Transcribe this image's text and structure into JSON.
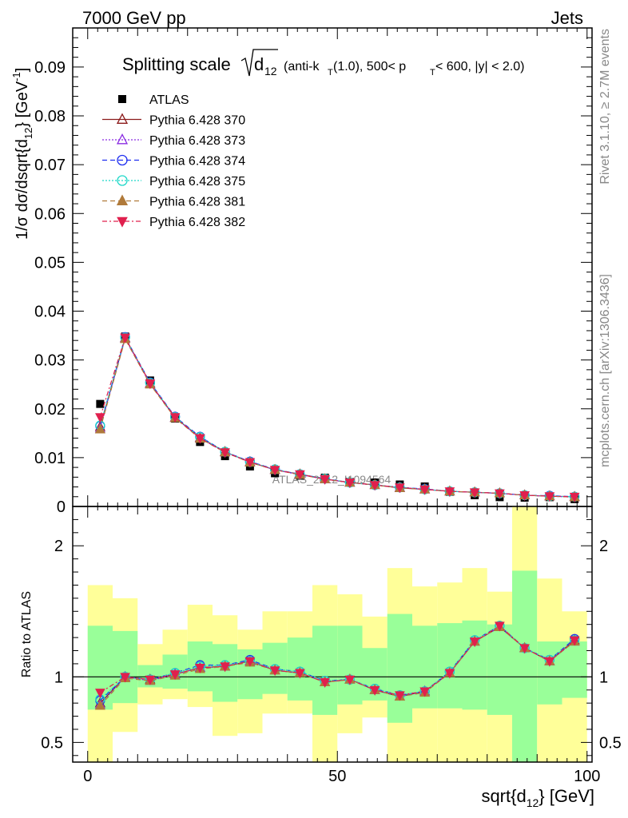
{
  "header": {
    "left": "7000 GeV pp",
    "right": "Jets"
  },
  "side_labels": {
    "rivet": "Rivet 3.1.10, ≥ 2.7M events",
    "mcplots": "mcplots.cern.ch [arXiv:1306.3436]"
  },
  "watermark": "ATLAS_2012_I1094564",
  "chart_data": [
    {
      "type": "scatter",
      "panel": "main",
      "title_main": "Splitting scale",
      "title_sub": "(anti-k",
      "title_tail": "(1.0), 500< p",
      "title_tail2": " < 600, |y| < 2.0)",
      "sqrt_sym": "d",
      "sqrt_sub": "12",
      "ylabel": "1/σ dσ/dsqrt{d",
      "ylabel_sub": "12",
      "ylabel_tail": "} [GeV",
      "ylabel_sup": "-1",
      "ylabel_end": "]",
      "ylim": [
        0,
        0.098
      ],
      "xlim": [
        -3,
        101
      ],
      "yticks": [
        "0",
        "0.01",
        "0.02",
        "0.03",
        "0.04",
        "0.05",
        "0.06",
        "0.07",
        "0.08",
        "0.09"
      ],
      "x": [
        2.5,
        7.5,
        12.5,
        17.5,
        22.5,
        27.5,
        32.5,
        37.5,
        42.5,
        47.5,
        52.5,
        57.5,
        62.5,
        67.5,
        72.5,
        77.5,
        82.5,
        87.5,
        92.5,
        97.5
      ],
      "series": [
        {
          "name": "ATLAS",
          "color": "#000000",
          "marker": "square",
          "line": "none",
          "values": [
            0.021,
            0.0348,
            0.0258,
            0.018,
            0.0132,
            0.0103,
            0.0082,
            0.0068,
            0.0063,
            0.0059,
            0.005,
            0.0049,
            0.0045,
            0.0041,
            0.003,
            0.0023,
            0.0019,
            0.0018,
            0.0019,
            0.0015
          ]
        },
        {
          "name": "Pythia 6.428 370",
          "color": "#8b1a1a",
          "marker": "triangle-open",
          "line": "solid",
          "values": [
            0.0163,
            0.0345,
            0.0252,
            0.0182,
            0.0141,
            0.0112,
            0.0091,
            0.0075,
            0.0066,
            0.0056,
            0.0049,
            0.0044,
            0.0038,
            0.0035,
            0.0031,
            0.0029,
            0.0027,
            0.0023,
            0.0021,
            0.002
          ]
        },
        {
          "name": "Pythia 6.428 373",
          "color": "#8a2be2",
          "marker": "triangle-open",
          "line": "dotted",
          "values": [
            0.016,
            0.0344,
            0.0251,
            0.0182,
            0.014,
            0.0111,
            0.0091,
            0.0075,
            0.0065,
            0.0056,
            0.0049,
            0.0044,
            0.0039,
            0.0035,
            0.0031,
            0.0029,
            0.0027,
            0.0023,
            0.0021,
            0.0019
          ]
        },
        {
          "name": "Pythia 6.428 374",
          "color": "#1f2ff0",
          "marker": "circle-open",
          "line": "dashed",
          "values": [
            0.0165,
            0.0347,
            0.0254,
            0.0184,
            0.0143,
            0.0112,
            0.0092,
            0.0076,
            0.0066,
            0.0057,
            0.0049,
            0.0044,
            0.0039,
            0.0036,
            0.0031,
            0.0029,
            0.0027,
            0.0023,
            0.0022,
            0.002
          ]
        },
        {
          "name": "Pythia 6.428 375",
          "color": "#1ed8c8",
          "marker": "circle-open",
          "line": "dotted",
          "values": [
            0.0166,
            0.0346,
            0.0253,
            0.0183,
            0.0142,
            0.0112,
            0.0091,
            0.0076,
            0.0066,
            0.0057,
            0.0049,
            0.0044,
            0.0039,
            0.0035,
            0.0031,
            0.0029,
            0.0027,
            0.0023,
            0.0021,
            0.002
          ]
        },
        {
          "name": "Pythia 6.428 381",
          "color": "#b07a3a",
          "marker": "triangle-filled",
          "line": "dashed",
          "values": [
            0.0158,
            0.0343,
            0.025,
            0.0181,
            0.0139,
            0.0111,
            0.009,
            0.0075,
            0.0065,
            0.0056,
            0.0049,
            0.0044,
            0.0038,
            0.0035,
            0.0031,
            0.0029,
            0.0027,
            0.0023,
            0.0021,
            0.0019
          ]
        },
        {
          "name": "Pythia 6.428 382",
          "color": "#e0204e",
          "marker": "triangle-down-filled",
          "line": "dashdot",
          "values": [
            0.0183,
            0.0346,
            0.0252,
            0.0183,
            0.014,
            0.0111,
            0.0091,
            0.0075,
            0.0066,
            0.0056,
            0.0049,
            0.0044,
            0.0039,
            0.0035,
            0.0031,
            0.0029,
            0.0027,
            0.0023,
            0.0021,
            0.002
          ]
        }
      ]
    },
    {
      "type": "scatter",
      "panel": "ratio",
      "ylabel": "Ratio to ATLAS",
      "xlabel": "sqrt{d",
      "xlabel_sub": "12",
      "xlabel_tail": "} [GeV]",
      "ylim": [
        0.35,
        2.3
      ],
      "xlim": [
        -3,
        101
      ],
      "yticks": [
        "0.5",
        "1",
        "2"
      ],
      "yticks_right": [
        "0.5",
        "1",
        "2"
      ],
      "xticks": [
        "0",
        "50",
        "100"
      ],
      "band_edges": [
        0,
        5,
        10,
        15,
        20,
        25,
        30,
        35,
        40,
        45,
        50,
        55,
        60,
        65,
        70,
        75,
        80,
        85,
        90,
        95,
        100
      ],
      "band_yellow_low": [
        0.35,
        0.58,
        0.79,
        0.83,
        0.77,
        0.55,
        0.57,
        0.72,
        0.72,
        0.35,
        0.57,
        0.69,
        0.35,
        0.35,
        0.35,
        0.35,
        0.35,
        0.35,
        0.35,
        0.35
      ],
      "band_yellow_high": [
        1.7,
        1.6,
        1.25,
        1.36,
        1.55,
        1.47,
        1.36,
        1.5,
        1.5,
        1.7,
        1.63,
        1.46,
        1.83,
        1.69,
        1.72,
        1.83,
        1.65,
        2.3,
        1.75,
        1.5
      ],
      "band_green_low": [
        0.75,
        0.8,
        0.92,
        0.91,
        0.89,
        0.81,
        0.83,
        0.87,
        0.82,
        0.71,
        0.79,
        0.82,
        0.65,
        0.76,
        0.76,
        0.75,
        0.71,
        0.35,
        0.79,
        0.84
      ],
      "band_green_high": [
        1.39,
        1.35,
        1.09,
        1.17,
        1.27,
        1.25,
        1.21,
        1.26,
        1.3,
        1.39,
        1.39,
        1.22,
        1.48,
        1.39,
        1.41,
        1.43,
        1.4,
        1.81,
        1.27,
        1.27
      ],
      "x": [
        2.5,
        7.5,
        12.5,
        17.5,
        22.5,
        27.5,
        32.5,
        37.5,
        42.5,
        47.5,
        52.5,
        57.5,
        62.5,
        67.5,
        72.5,
        77.5,
        82.5,
        87.5,
        92.5,
        97.5
      ],
      "series": [
        {
          "name": "Pythia 6.428 370",
          "values": [
            0.8,
            1.0,
            0.98,
            1.02,
            1.07,
            1.08,
            1.12,
            1.05,
            1.03,
            0.96,
            0.98,
            0.9,
            0.85,
            0.89,
            1.03,
            1.27,
            1.38,
            1.22,
            1.12,
            1.28
          ]
        },
        {
          "name": "Pythia 6.428 373",
          "values": [
            0.79,
            1.0,
            0.97,
            1.02,
            1.07,
            1.08,
            1.12,
            1.05,
            1.03,
            0.96,
            0.98,
            0.9,
            0.85,
            0.89,
            1.03,
            1.27,
            1.38,
            1.22,
            1.12,
            1.27
          ]
        },
        {
          "name": "Pythia 6.428 374",
          "values": [
            0.82,
            1.0,
            0.98,
            1.03,
            1.09,
            1.09,
            1.13,
            1.06,
            1.04,
            0.97,
            0.98,
            0.91,
            0.86,
            0.89,
            1.04,
            1.28,
            1.39,
            1.22,
            1.13,
            1.29
          ]
        },
        {
          "name": "Pythia 6.428 375",
          "values": [
            0.83,
            1.0,
            0.98,
            1.03,
            1.08,
            1.09,
            1.12,
            1.06,
            1.04,
            0.97,
            0.98,
            0.91,
            0.86,
            0.89,
            1.04,
            1.28,
            1.39,
            1.22,
            1.13,
            1.28
          ]
        },
        {
          "name": "Pythia 6.428 381",
          "values": [
            0.78,
            0.99,
            0.97,
            1.01,
            1.06,
            1.08,
            1.11,
            1.05,
            1.03,
            0.96,
            0.98,
            0.9,
            0.85,
            0.88,
            1.03,
            1.27,
            1.38,
            1.22,
            1.12,
            1.27
          ]
        },
        {
          "name": "Pythia 6.428 382",
          "values": [
            0.88,
            1.0,
            0.98,
            1.02,
            1.07,
            1.08,
            1.12,
            1.05,
            1.03,
            0.96,
            0.98,
            0.9,
            0.86,
            0.89,
            1.03,
            1.27,
            1.39,
            1.22,
            1.12,
            1.28
          ]
        }
      ]
    }
  ]
}
